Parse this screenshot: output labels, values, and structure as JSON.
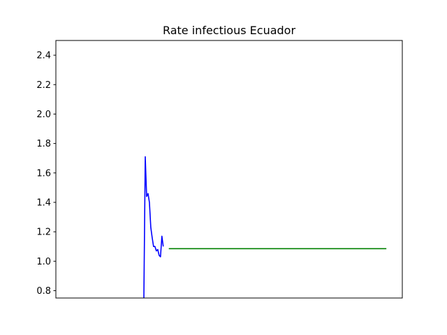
{
  "chart_data": {
    "type": "line",
    "title": "Rate infectious Ecuador",
    "xlabel": "",
    "ylabel": "",
    "xlim": [
      0,
      100
    ],
    "ylim": [
      0.75,
      2.5
    ],
    "yticks": [
      0.8,
      1.0,
      1.2,
      1.4,
      1.6,
      1.8,
      2.0,
      2.2,
      2.4
    ],
    "ytick_labels": [
      "0.8",
      "1.0",
      "1.2",
      "1.4",
      "1.6",
      "1.8",
      "2.0",
      "2.2",
      "2.4"
    ],
    "xticks_shown": false,
    "grid": false,
    "series": [
      {
        "color": "#0000ff",
        "x": [
          25.4,
          25.8,
          26.2,
          26.6,
          27.0,
          27.4,
          27.8,
          28.2,
          28.6,
          29.0,
          29.4,
          29.8,
          30.2,
          30.6,
          31.0,
          31.4,
          31.8,
          32.2
        ],
        "y": [
          0.75,
          1.71,
          1.44,
          1.46,
          1.4,
          1.23,
          1.16,
          1.1,
          1.1,
          1.07,
          1.08,
          1.04,
          1.03,
          1.17,
          1.1,
          null,
          null,
          null
        ]
      },
      {
        "color": "#008000",
        "x": [
          32.6,
          95.4
        ],
        "y": [
          1.085,
          1.085
        ]
      }
    ]
  }
}
